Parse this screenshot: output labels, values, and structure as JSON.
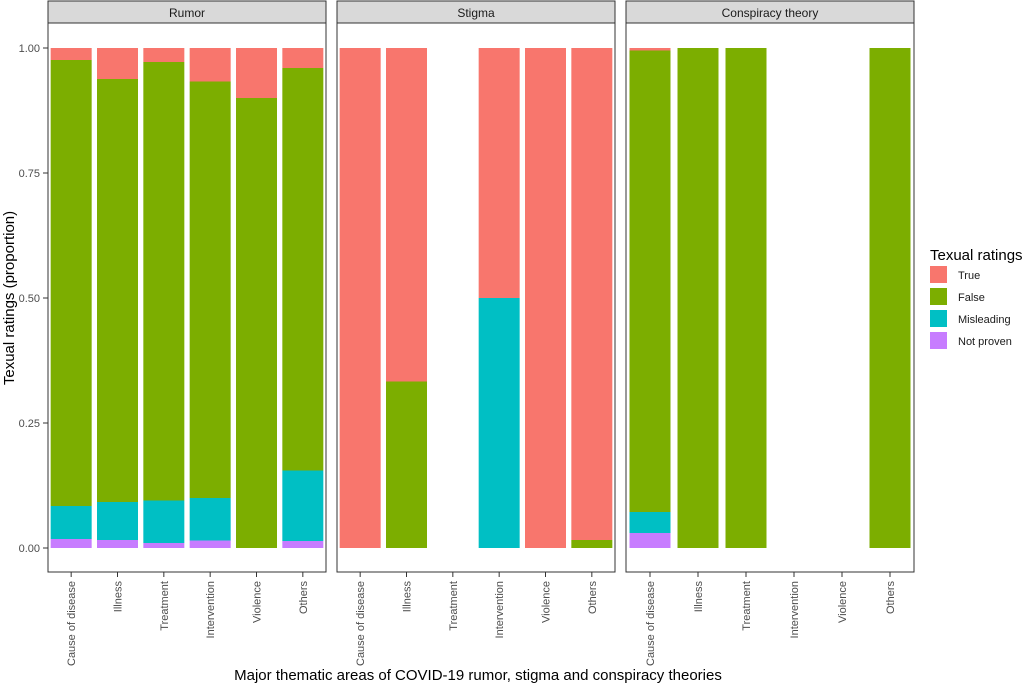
{
  "chart_data": {
    "type": "bar",
    "stacked": true,
    "facets": [
      {
        "title": "Rumor",
        "categories": [
          "Cause of disease",
          "Illness",
          "Treatment",
          "Intervention",
          "Violence",
          "Others"
        ],
        "series": [
          {
            "name": "Not proven",
            "values": [
              0.018,
              0.016,
              0.01,
              0.015,
              0.0,
              0.014
            ]
          },
          {
            "name": "Misleading",
            "values": [
              0.066,
              0.076,
              0.085,
              0.085,
              0.0,
              0.141
            ]
          },
          {
            "name": "False",
            "values": [
              0.892,
              0.846,
              0.877,
              0.833,
              0.9,
              0.805
            ]
          },
          {
            "name": "True",
            "values": [
              0.024,
              0.062,
              0.028,
              0.067,
              0.1,
              0.04
            ]
          }
        ]
      },
      {
        "title": "Stigma",
        "categories": [
          "Cause of disease",
          "Illness",
          "Treatment",
          "Intervention",
          "Violence",
          "Others"
        ],
        "series": [
          {
            "name": "Not proven",
            "values": [
              0,
              0,
              null,
              0,
              0,
              0
            ]
          },
          {
            "name": "Misleading",
            "values": [
              0,
              0,
              null,
              0.5,
              0,
              0
            ]
          },
          {
            "name": "False",
            "values": [
              0,
              0.333,
              null,
              0,
              0,
              0.016
            ]
          },
          {
            "name": "True",
            "values": [
              1.0,
              0.667,
              null,
              0.5,
              1.0,
              0.984
            ]
          }
        ]
      },
      {
        "title": "Conspiracy theory",
        "categories": [
          "Cause of disease",
          "Illness",
          "Treatment",
          "Intervention",
          "Violence",
          "Others"
        ],
        "series": [
          {
            "name": "Not proven",
            "values": [
              0.03,
              0,
              0,
              null,
              null,
              0
            ]
          },
          {
            "name": "Misleading",
            "values": [
              0.042,
              0,
              0,
              null,
              null,
              0
            ]
          },
          {
            "name": "False",
            "values": [
              0.923,
              1.0,
              1.0,
              null,
              null,
              1.0
            ]
          },
          {
            "name": "True",
            "values": [
              0.005,
              0,
              0,
              null,
              null,
              0
            ]
          }
        ]
      }
    ],
    "xlabel": "Major thematic areas of COVID-19 rumor, stigma and conspiracy theories",
    "ylabel": "Texual ratings (proportion)",
    "ylim": [
      0,
      1
    ],
    "yticks": [
      "0.00",
      "0.25",
      "0.50",
      "0.75",
      "1.00"
    ],
    "grid": false,
    "legend": {
      "title": "Texual ratings",
      "placement": "right",
      "entries": [
        {
          "name": "True",
          "color": "#F8766D"
        },
        {
          "name": "False",
          "color": "#7CAE00"
        },
        {
          "name": "Misleading",
          "color": "#00BFC4"
        },
        {
          "name": "Not proven",
          "color": "#C77CFF"
        }
      ]
    }
  }
}
